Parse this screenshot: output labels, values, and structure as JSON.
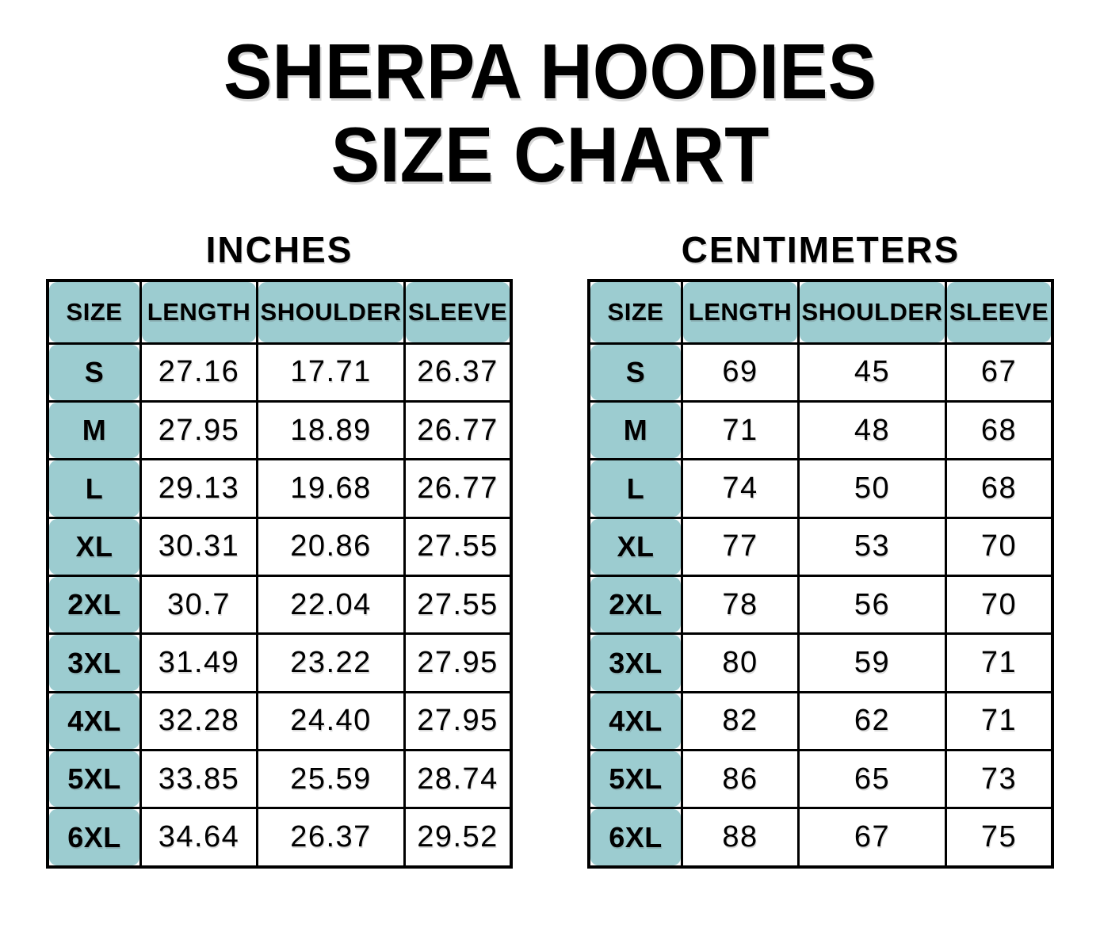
{
  "title": {
    "line1": "SHERPA HOODIES",
    "line2": "SIZE CHART"
  },
  "colors": {
    "header_fill": "#9cccd0",
    "border": "#000000",
    "page_bg": "#ffffff",
    "text": "#000000"
  },
  "chart_data": [
    {
      "type": "table",
      "title": "INCHES",
      "columns": [
        "SIZE",
        "LENGTH",
        "SHOULDER",
        "SLEEVE"
      ],
      "rows": [
        [
          "S",
          "27.16",
          "17.71",
          "26.37"
        ],
        [
          "M",
          "27.95",
          "18.89",
          "26.77"
        ],
        [
          "L",
          "29.13",
          "19.68",
          "26.77"
        ],
        [
          "XL",
          "30.31",
          "20.86",
          "27.55"
        ],
        [
          "2XL",
          "30.7",
          "22.04",
          "27.55"
        ],
        [
          "3XL",
          "31.49",
          "23.22",
          "27.95"
        ],
        [
          "4XL",
          "32.28",
          "24.40",
          "27.95"
        ],
        [
          "5XL",
          "33.85",
          "25.59",
          "28.74"
        ],
        [
          "6XL",
          "34.64",
          "26.37",
          "29.52"
        ]
      ]
    },
    {
      "type": "table",
      "title": "CENTIMETERS",
      "columns": [
        "SIZE",
        "LENGTH",
        "SHOULDER",
        "SLEEVE"
      ],
      "rows": [
        [
          "S",
          "69",
          "45",
          "67"
        ],
        [
          "M",
          "71",
          "48",
          "68"
        ],
        [
          "L",
          "74",
          "50",
          "68"
        ],
        [
          "XL",
          "77",
          "53",
          "70"
        ],
        [
          "2XL",
          "78",
          "56",
          "70"
        ],
        [
          "3XL",
          "80",
          "59",
          "71"
        ],
        [
          "4XL",
          "82",
          "62",
          "71"
        ],
        [
          "5XL",
          "86",
          "65",
          "73"
        ],
        [
          "6XL",
          "88",
          "67",
          "75"
        ]
      ]
    }
  ]
}
